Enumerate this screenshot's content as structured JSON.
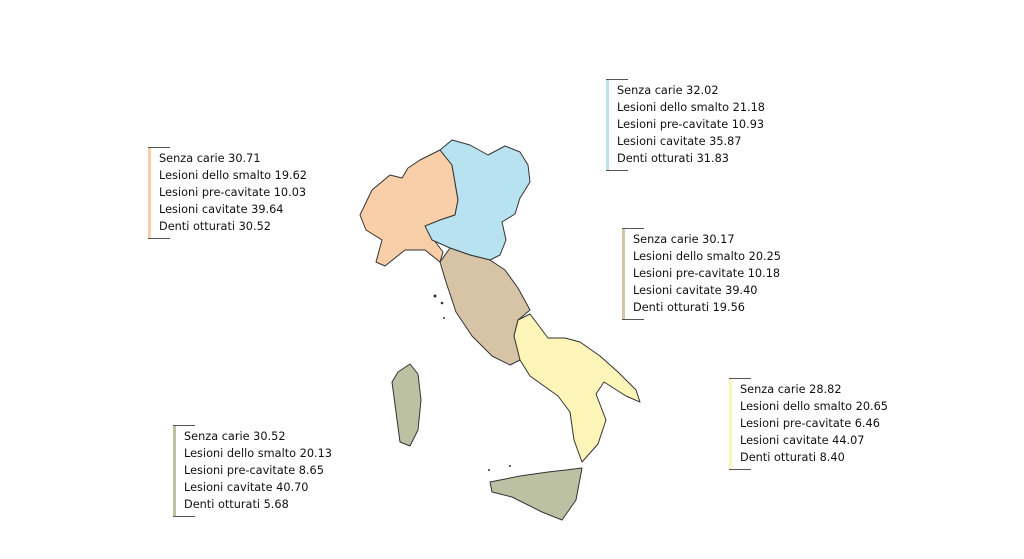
{
  "colors": {
    "northwest": "#f9cfa9",
    "northeast": "#b8e2ef",
    "center": "#d7c4a7",
    "south": "#fdf4b8",
    "islands": "#bcc1a4"
  },
  "areas": {
    "northwest": {
      "lines": [
        "Senza carie 30.71",
        "Lesioni dello smalto 19.62",
        "Lesioni pre-cavitate 10.03",
        "Lesioni cavitate 39.64",
        "Denti otturati 30.52"
      ]
    },
    "northeast": {
      "lines": [
        "Senza carie 32.02",
        "Lesioni dello smalto 21.18",
        "Lesioni pre-cavitate 10.93",
        "Lesioni cavitate 35.87",
        "Denti otturati 31.83"
      ]
    },
    "center": {
      "lines": [
        "Senza carie 30.17",
        "Lesioni dello smalto 20.25",
        "Lesioni pre-cavitate 10.18",
        "Lesioni cavitate 39.40",
        "Denti otturati 19.56"
      ]
    },
    "south": {
      "lines": [
        "Senza carie 28.82",
        "Lesioni dello smalto 20.65",
        "Lesioni pre-cavitate 6.46",
        "Lesioni cavitate 44.07",
        "Denti otturati 8.40"
      ]
    },
    "islands": {
      "lines": [
        "Senza carie  30.52",
        "Lesioni dello smalto 20.13",
        "Lesioni pre-cavitate 8.65",
        "Lesioni cavitate 40.70",
        "Denti otturati 5.68"
      ]
    }
  }
}
